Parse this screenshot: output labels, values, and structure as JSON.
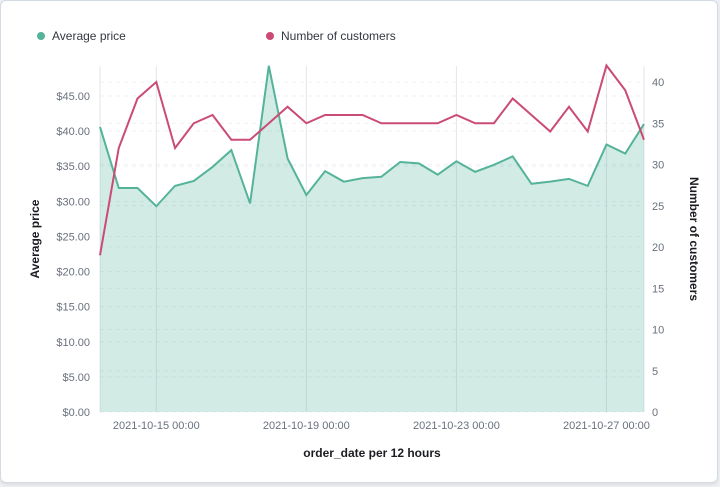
{
  "chart_data": {
    "type": "line",
    "xlabel": "order_date per 12 hours",
    "ylabel_left": "Average price",
    "ylabel_right": "Number of customers",
    "x_tick_labels": [
      "2021-10-15 00:00",
      "2021-10-19 00:00",
      "2021-10-23 00:00",
      "2021-10-27 00:00"
    ],
    "x_start": "2021-10-13 12:00",
    "x_end": "2021-10-28 00:00",
    "x_interval": "12 hours",
    "y_left_ticks": [
      "$0.00",
      "$5.00",
      "$10.00",
      "$15.00",
      "$20.00",
      "$25.00",
      "$30.00",
      "$35.00",
      "$40.00",
      "$45.00"
    ],
    "y_left_range": [
      0,
      45
    ],
    "y_right_ticks": [
      "0",
      "5",
      "10",
      "15",
      "20",
      "25",
      "30",
      "35",
      "40"
    ],
    "y_right_range": [
      0,
      40
    ],
    "legend_position": "top-left",
    "grid": true,
    "series": [
      {
        "name": "Average price",
        "type": "area",
        "axis": "left",
        "color": "#54b399",
        "values": [
          40.6,
          31.9,
          31.9,
          29.3,
          32.2,
          32.9,
          34.9,
          37.3,
          29.7,
          49.3,
          36.1,
          30.9,
          34.3,
          32.8,
          33.3,
          33.5,
          35.6,
          35.4,
          33.8,
          35.7,
          34.2,
          35.2,
          36.4,
          32.5,
          32.8,
          33.2,
          32.2,
          38.1,
          36.8,
          41.0
        ]
      },
      {
        "name": "Number of customers",
        "type": "line",
        "axis": "right",
        "color": "#ca4b74",
        "values": [
          19,
          32,
          38,
          40,
          32,
          35,
          36,
          33,
          33,
          35,
          37,
          35,
          36,
          36,
          36,
          35,
          35,
          35,
          35,
          36,
          35,
          35,
          38,
          36,
          34,
          37,
          34,
          42,
          39,
          33
        ]
      }
    ]
  }
}
